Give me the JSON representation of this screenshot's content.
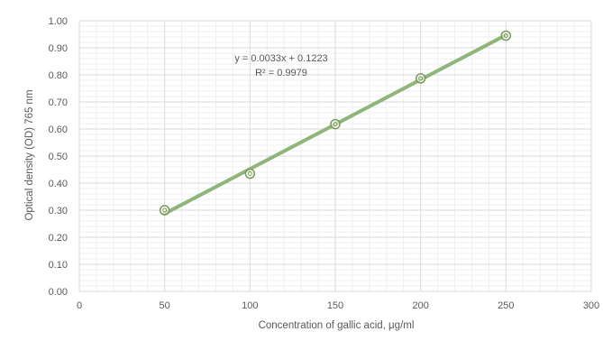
{
  "chart_data": {
    "type": "scatter",
    "title": "",
    "xlabel": "Concentration of gallic acid, μg/ml",
    "ylabel": "Optical density (OD) 765 nm",
    "xlim": [
      0,
      300
    ],
    "ylim": [
      0,
      1.0
    ],
    "x_ticks": [
      "0",
      "50",
      "100",
      "150",
      "200",
      "250",
      "300"
    ],
    "y_ticks": [
      "0.00",
      "0.10",
      "0.20",
      "0.30",
      "0.40",
      "0.50",
      "0.60",
      "0.70",
      "0.80",
      "0.90",
      "1.00"
    ],
    "grid": true,
    "legend": "none",
    "series": [
      {
        "x": [
          50,
          100,
          150,
          200,
          250
        ],
        "y": [
          0.3,
          0.435,
          0.618,
          0.787,
          0.945
        ]
      }
    ],
    "trendline": {
      "type": "linear",
      "slope": 0.0033,
      "intercept": 0.1223,
      "x_range": [
        50,
        250
      ]
    },
    "annotations": [
      "y = 0.0033x + 0.1223",
      "R² = 0.9979"
    ],
    "colors": {
      "marker": "#7a9a5a",
      "trendline": "#8fb57a",
      "grid": "#d9d9d9",
      "text": "#595959"
    }
  }
}
